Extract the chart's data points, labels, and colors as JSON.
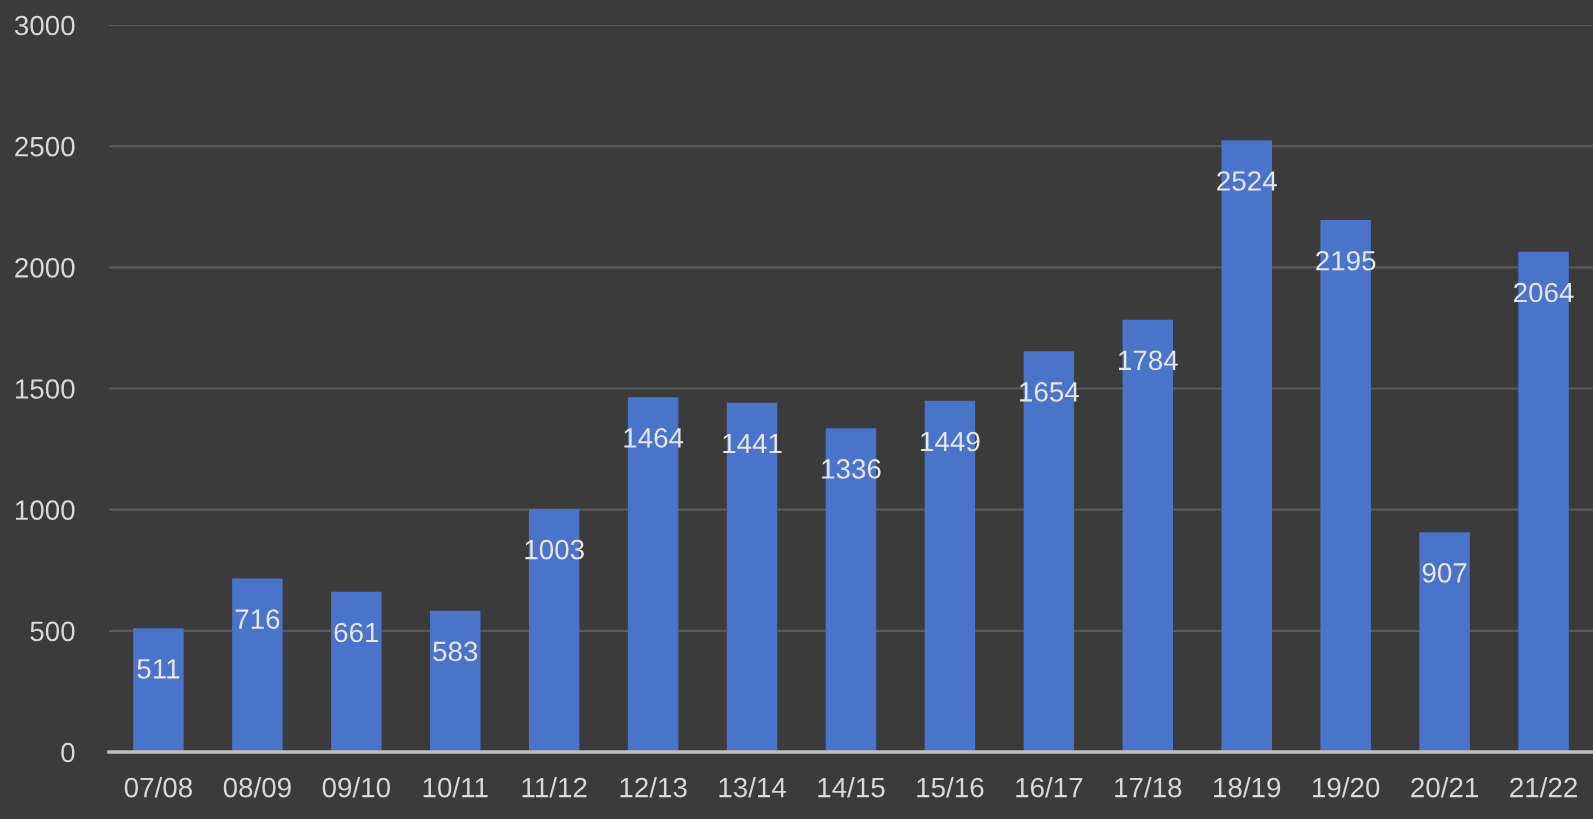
{
  "chart_data": {
    "type": "bar",
    "categories": [
      "07/08",
      "08/09",
      "09/10",
      "10/11",
      "11/12",
      "12/13",
      "13/14",
      "14/15",
      "15/16",
      "16/17",
      "17/18",
      "18/19",
      "19/20",
      "20/21",
      "21/22"
    ],
    "values": [
      511,
      716,
      661,
      583,
      1003,
      1464,
      1441,
      1336,
      1449,
      1654,
      1784,
      2524,
      2195,
      907,
      2064
    ],
    "color": "#4a74c9",
    "ylim": [
      0,
      3000
    ],
    "yticks": [
      0,
      500,
      1000,
      1500,
      2000,
      2500,
      3000
    ],
    "grid": "y",
    "data_labels": true
  }
}
